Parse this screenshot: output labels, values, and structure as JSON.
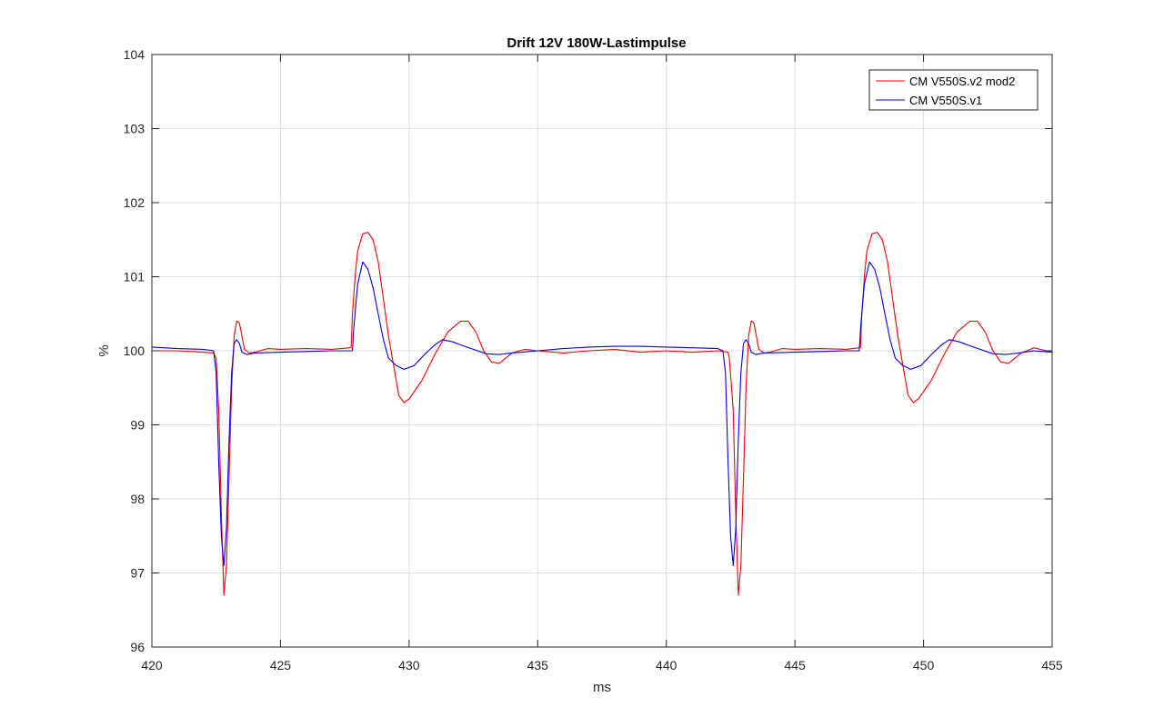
{
  "chart_data": {
    "type": "line",
    "title": "Drift 12V 180W-Lastimpulse",
    "xlabel": "ms",
    "ylabel": "%",
    "xlim": [
      420,
      455
    ],
    "ylim": [
      96,
      104
    ],
    "xticks": [
      420,
      425,
      430,
      435,
      440,
      445,
      450,
      455
    ],
    "yticks": [
      96,
      97,
      98,
      99,
      100,
      101,
      102,
      103,
      104
    ],
    "grid": true,
    "legend_position": "top-right",
    "series": [
      {
        "name": "CM V550S.v2 mod2",
        "color": "#ff0000",
        "points": [
          [
            420,
            100.0
          ],
          [
            421,
            100.0
          ],
          [
            422,
            99.98
          ],
          [
            422.4,
            99.97
          ],
          [
            422.5,
            99.9
          ],
          [
            422.6,
            99.2
          ],
          [
            422.7,
            97.8
          ],
          [
            422.8,
            96.7
          ],
          [
            422.9,
            97.1
          ],
          [
            423.0,
            98.3
          ],
          [
            423.1,
            99.5
          ],
          [
            423.2,
            100.2
          ],
          [
            423.3,
            100.4
          ],
          [
            423.4,
            100.38
          ],
          [
            423.5,
            100.2
          ],
          [
            423.6,
            100.02
          ],
          [
            423.8,
            99.97
          ],
          [
            424.0,
            99.98
          ],
          [
            424.5,
            100.03
          ],
          [
            425,
            100.02
          ],
          [
            426,
            100.03
          ],
          [
            427,
            100.02
          ],
          [
            427.7,
            100.04
          ],
          [
            427.75,
            100.05
          ],
          [
            427.8,
            100.5
          ],
          [
            427.9,
            101.0
          ],
          [
            428.0,
            101.35
          ],
          [
            428.2,
            101.58
          ],
          [
            428.4,
            101.6
          ],
          [
            428.6,
            101.5
          ],
          [
            428.8,
            101.2
          ],
          [
            429.0,
            100.7
          ],
          [
            429.2,
            100.2
          ],
          [
            429.4,
            99.8
          ],
          [
            429.6,
            99.4
          ],
          [
            429.8,
            99.3
          ],
          [
            430.0,
            99.35
          ],
          [
            430.5,
            99.6
          ],
          [
            431.0,
            99.95
          ],
          [
            431.5,
            100.25
          ],
          [
            432.0,
            100.4
          ],
          [
            432.3,
            100.4
          ],
          [
            432.6,
            100.25
          ],
          [
            432.9,
            100.0
          ],
          [
            433.2,
            99.85
          ],
          [
            433.5,
            99.83
          ],
          [
            434.0,
            99.97
          ],
          [
            434.5,
            100.02
          ],
          [
            435,
            100.0
          ],
          [
            436,
            99.97
          ],
          [
            437,
            100.0
          ],
          [
            438,
            100.02
          ],
          [
            439,
            99.98
          ],
          [
            440,
            100.0
          ],
          [
            441,
            99.98
          ],
          [
            442,
            100.0
          ],
          [
            442.4,
            99.98
          ],
          [
            442.45,
            99.9
          ],
          [
            442.6,
            99.2
          ],
          [
            442.7,
            97.8
          ],
          [
            442.8,
            96.7
          ],
          [
            442.9,
            97.1
          ],
          [
            443.0,
            98.3
          ],
          [
            443.1,
            99.5
          ],
          [
            443.2,
            100.2
          ],
          [
            443.3,
            100.4
          ],
          [
            443.4,
            100.38
          ],
          [
            443.5,
            100.2
          ],
          [
            443.6,
            100.02
          ],
          [
            443.8,
            99.97
          ],
          [
            444.0,
            99.98
          ],
          [
            444.5,
            100.03
          ],
          [
            445,
            100.02
          ],
          [
            446,
            100.03
          ],
          [
            447,
            100.02
          ],
          [
            447.5,
            100.04
          ],
          [
            447.55,
            100.05
          ],
          [
            447.6,
            100.5
          ],
          [
            447.7,
            101.0
          ],
          [
            447.8,
            101.35
          ],
          [
            448.0,
            101.58
          ],
          [
            448.2,
            101.6
          ],
          [
            448.4,
            101.5
          ],
          [
            448.6,
            101.2
          ],
          [
            448.8,
            100.7
          ],
          [
            449.0,
            100.2
          ],
          [
            449.2,
            99.8
          ],
          [
            449.4,
            99.4
          ],
          [
            449.6,
            99.3
          ],
          [
            449.8,
            99.35
          ],
          [
            450.3,
            99.6
          ],
          [
            450.8,
            99.95
          ],
          [
            451.3,
            100.25
          ],
          [
            451.8,
            100.4
          ],
          [
            452.1,
            100.4
          ],
          [
            452.4,
            100.25
          ],
          [
            452.7,
            100.0
          ],
          [
            453.0,
            99.85
          ],
          [
            453.3,
            99.83
          ],
          [
            453.8,
            99.97
          ],
          [
            454.3,
            100.04
          ],
          [
            455,
            99.98
          ]
        ]
      },
      {
        "name": "CM V550S.v1",
        "color": "#0000ff",
        "points": [
          [
            420,
            100.05
          ],
          [
            421,
            100.03
          ],
          [
            422,
            100.02
          ],
          [
            422.4,
            100.0
          ],
          [
            422.5,
            99.7
          ],
          [
            422.6,
            98.5
          ],
          [
            422.7,
            97.5
          ],
          [
            422.8,
            97.1
          ],
          [
            422.9,
            97.6
          ],
          [
            423.0,
            98.8
          ],
          [
            423.1,
            99.7
          ],
          [
            423.2,
            100.1
          ],
          [
            423.3,
            100.15
          ],
          [
            423.4,
            100.1
          ],
          [
            423.5,
            99.98
          ],
          [
            423.7,
            99.95
          ],
          [
            424.0,
            99.97
          ],
          [
            425,
            99.98
          ],
          [
            426,
            99.99
          ],
          [
            427,
            100.0
          ],
          [
            427.8,
            100.0
          ],
          [
            427.85,
            100.3
          ],
          [
            428.0,
            100.9
          ],
          [
            428.2,
            101.2
          ],
          [
            428.4,
            101.1
          ],
          [
            428.6,
            100.85
          ],
          [
            428.8,
            100.5
          ],
          [
            429.0,
            100.15
          ],
          [
            429.2,
            99.9
          ],
          [
            429.5,
            99.8
          ],
          [
            429.8,
            99.75
          ],
          [
            430.2,
            99.8
          ],
          [
            430.6,
            99.95
          ],
          [
            431.0,
            100.08
          ],
          [
            431.3,
            100.15
          ],
          [
            431.7,
            100.12
          ],
          [
            432.0,
            100.08
          ],
          [
            432.5,
            100.02
          ],
          [
            433.0,
            99.96
          ],
          [
            433.5,
            99.95
          ],
          [
            434.0,
            99.97
          ],
          [
            435,
            100.0
          ],
          [
            436,
            100.03
          ],
          [
            437,
            100.05
          ],
          [
            438,
            100.06
          ],
          [
            439,
            100.06
          ],
          [
            440,
            100.05
          ],
          [
            441,
            100.04
          ],
          [
            442,
            100.03
          ],
          [
            442.2,
            100.0
          ],
          [
            442.3,
            99.7
          ],
          [
            442.4,
            98.5
          ],
          [
            442.5,
            97.5
          ],
          [
            442.6,
            97.1
          ],
          [
            442.7,
            97.6
          ],
          [
            442.8,
            98.8
          ],
          [
            442.9,
            99.7
          ],
          [
            443.0,
            100.1
          ],
          [
            443.1,
            100.15
          ],
          [
            443.2,
            100.1
          ],
          [
            443.3,
            99.98
          ],
          [
            443.5,
            99.95
          ],
          [
            443.8,
            99.97
          ],
          [
            445,
            99.98
          ],
          [
            446,
            99.99
          ],
          [
            447,
            100.0
          ],
          [
            447.5,
            100.0
          ],
          [
            447.55,
            100.3
          ],
          [
            447.7,
            100.9
          ],
          [
            447.9,
            101.2
          ],
          [
            448.1,
            101.1
          ],
          [
            448.3,
            100.85
          ],
          [
            448.5,
            100.5
          ],
          [
            448.7,
            100.15
          ],
          [
            448.9,
            99.9
          ],
          [
            449.2,
            99.8
          ],
          [
            449.5,
            99.75
          ],
          [
            449.9,
            99.8
          ],
          [
            450.3,
            99.95
          ],
          [
            450.7,
            100.08
          ],
          [
            451.0,
            100.15
          ],
          [
            451.4,
            100.12
          ],
          [
            451.7,
            100.08
          ],
          [
            452.2,
            100.02
          ],
          [
            452.7,
            99.96
          ],
          [
            453.2,
            99.95
          ],
          [
            453.7,
            99.97
          ],
          [
            454.3,
            100.0
          ],
          [
            455,
            99.98
          ]
        ]
      }
    ]
  }
}
